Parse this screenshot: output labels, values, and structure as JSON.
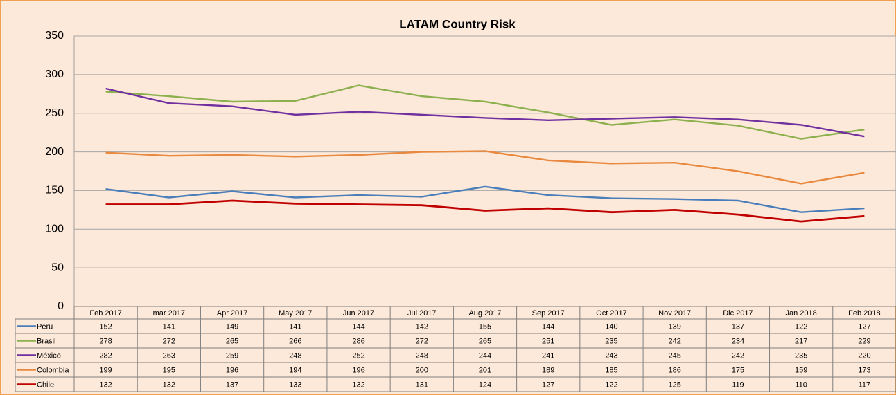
{
  "chart_data": {
    "type": "line",
    "title": "LATAM Country Risk",
    "categories": [
      "Feb 2017",
      "mar 2017",
      "Apr 2017",
      "May 2017",
      "Jun 2017",
      "Jul 2017",
      "Aug 2017",
      "Sep 2017",
      "Oct 2017",
      "Nov 2017",
      "Dic 2017",
      "Jan 2018",
      "Feb 2018"
    ],
    "series": [
      {
        "name": "Peru",
        "color": "#4a7ebb",
        "values": [
          152,
          141,
          149,
          141,
          144,
          142,
          155,
          144,
          140,
          139,
          137,
          122,
          127
        ]
      },
      {
        "name": "Brasil",
        "color": "#8cb04e",
        "values": [
          278,
          272,
          265,
          266,
          286,
          272,
          265,
          251,
          235,
          242,
          234,
          217,
          229
        ]
      },
      {
        "name": "México",
        "color": "#7030a0",
        "values": [
          282,
          263,
          259,
          248,
          252,
          248,
          244,
          241,
          243,
          245,
          242,
          235,
          220
        ]
      },
      {
        "name": "Colombia",
        "color": "#e8893f",
        "values": [
          199,
          195,
          196,
          194,
          196,
          200,
          201,
          189,
          185,
          186,
          175,
          159,
          173
        ]
      },
      {
        "name": "Chile",
        "color": "#c00000",
        "values": [
          132,
          132,
          137,
          133,
          132,
          131,
          124,
          127,
          122,
          125,
          119,
          110,
          117
        ]
      }
    ],
    "ylim": [
      0,
      350
    ],
    "yticks": [
      0,
      50,
      100,
      150,
      200,
      250,
      300,
      350
    ],
    "grid": true
  }
}
